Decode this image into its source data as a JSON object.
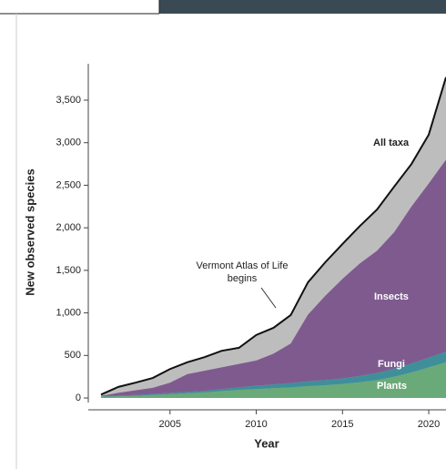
{
  "chart_data": {
    "type": "stacked_area",
    "ylabel": "New observed species",
    "xlabel": "Year",
    "x": [
      2001,
      2002,
      2003,
      2004,
      2005,
      2006,
      2007,
      2008,
      2009,
      2010,
      2011,
      2012,
      2013,
      2014,
      2015,
      2016,
      2017,
      2018,
      2019,
      2020,
      2021
    ],
    "series": [
      {
        "name": "Plants",
        "color": "#6aaa78",
        "values": [
          15,
          20,
          25,
          35,
          45,
          55,
          65,
          80,
          95,
          105,
          115,
          125,
          140,
          150,
          165,
          185,
          210,
          250,
          300,
          360,
          420
        ]
      },
      {
        "name": "Fungi",
        "color": "#3f8f9b",
        "values": [
          5,
          8,
          10,
          12,
          15,
          18,
          20,
          25,
          30,
          40,
          45,
          50,
          55,
          60,
          65,
          75,
          85,
          95,
          105,
          115,
          125
        ]
      },
      {
        "name": "Insects",
        "color": "#7f5a8f",
        "values": [
          5,
          32,
          55,
          73,
          120,
          207,
          235,
          255,
          275,
          295,
          360,
          465,
          785,
          990,
          1170,
          1320,
          1435,
          1605,
          1845,
          2045,
          2255
        ]
      }
    ],
    "total": {
      "name": "All taxa",
      "color": "#111111",
      "fill": "#bdbdbd",
      "values": [
        40,
        130,
        180,
        235,
        340,
        420,
        480,
        555,
        590,
        740,
        825,
        975,
        1360,
        1595,
        1810,
        2020,
        2215,
        2485,
        2750,
        3095,
        3770
      ]
    },
    "annotation": "Vermont Atlas of Life\nbegins",
    "xlim": [
      2000.3,
      2021
    ],
    "xticks": [
      2005,
      2010,
      2015,
      2020
    ],
    "ylim": [
      -50,
      3900
    ],
    "yticks": [
      0,
      500,
      {
        "value": 1000,
        "label": "1,000"
      },
      {
        "value": 1500,
        "label": "1,500"
      },
      {
        "value": 2000,
        "label": "2,000"
      },
      {
        "value": 2500,
        "label": "2,500"
      },
      {
        "value": 3000,
        "label": "3,000"
      },
      {
        "value": 3500,
        "label": "3,500"
      }
    ]
  }
}
